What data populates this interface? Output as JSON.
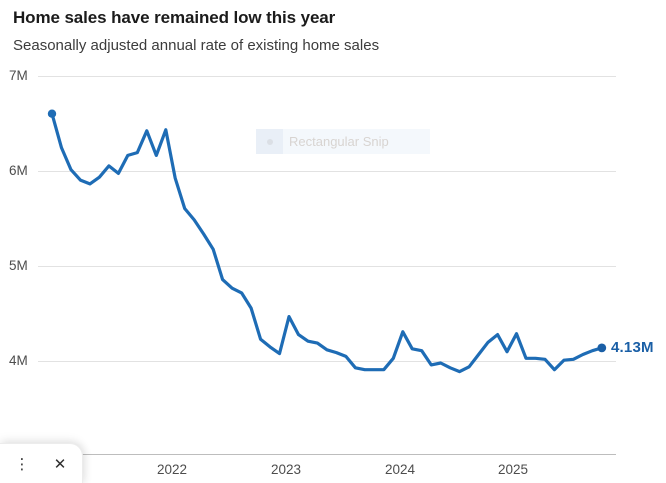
{
  "header": {
    "title": "Home sales have remained low this year",
    "subtitle": "Seasonally adjusted annual rate of existing home sales"
  },
  "chart_data": {
    "type": "line",
    "title": "Home sales have remained low this year",
    "subtitle": "Seasonally adjusted annual rate of existing home sales",
    "x": [
      "2021-01",
      "2021-02",
      "2021-03",
      "2021-04",
      "2021-05",
      "2021-06",
      "2021-07",
      "2021-08",
      "2021-09",
      "2021-10",
      "2021-11",
      "2021-12",
      "2022-01",
      "2022-02",
      "2022-03",
      "2022-04",
      "2022-05",
      "2022-06",
      "2022-07",
      "2022-08",
      "2022-09",
      "2022-10",
      "2022-11",
      "2022-12",
      "2023-01",
      "2023-02",
      "2023-03",
      "2023-04",
      "2023-05",
      "2023-06",
      "2023-07",
      "2023-08",
      "2023-09",
      "2023-10",
      "2023-11",
      "2023-12",
      "2024-01",
      "2024-02",
      "2024-03",
      "2024-04",
      "2024-05",
      "2024-06",
      "2024-07",
      "2024-08",
      "2024-09",
      "2024-10",
      "2024-11",
      "2024-12",
      "2025-01",
      "2025-02",
      "2025-03",
      "2025-04",
      "2025-05",
      "2025-06",
      "2025-07",
      "2025-08",
      "2025-09",
      "2025-10",
      "2025-11"
    ],
    "values": [
      6.6,
      6.24,
      6.01,
      5.9,
      5.86,
      5.93,
      6.05,
      5.97,
      6.16,
      6.19,
      6.42,
      6.16,
      6.43,
      5.92,
      5.6,
      5.48,
      5.33,
      5.17,
      4.85,
      4.76,
      4.71,
      4.55,
      4.22,
      4.14,
      4.07,
      4.46,
      4.27,
      4.2,
      4.18,
      4.11,
      4.08,
      4.04,
      3.92,
      3.9,
      3.9,
      3.9,
      4.02,
      4.3,
      4.12,
      4.1,
      3.95,
      3.97,
      3.92,
      3.88,
      3.93,
      4.06,
      4.19,
      4.27,
      4.09,
      4.28,
      4.02,
      4.02,
      4.01,
      3.9,
      4.0,
      4.01,
      4.06,
      4.1,
      4.13
    ],
    "unit_suffix": "M",
    "y_tick_labels": [
      "7M",
      "6M",
      "5M",
      "4M"
    ],
    "y_tick_values": [
      7,
      6,
      5,
      4
    ],
    "x_tick_labels": [
      "2022",
      "2023",
      "2024",
      "2025"
    ],
    "ylim": [
      3,
      7
    ],
    "grid": true,
    "legend_position": "none",
    "end_label": "4.13M",
    "line_color": "#1e6cb5",
    "end_label_color": "#1a5fa6"
  },
  "snip_overlay": {
    "label": "Rectangular Snip",
    "dot_icon": "dot"
  },
  "snip_panel": {
    "more_label": "⋮",
    "close_label": "✕"
  }
}
